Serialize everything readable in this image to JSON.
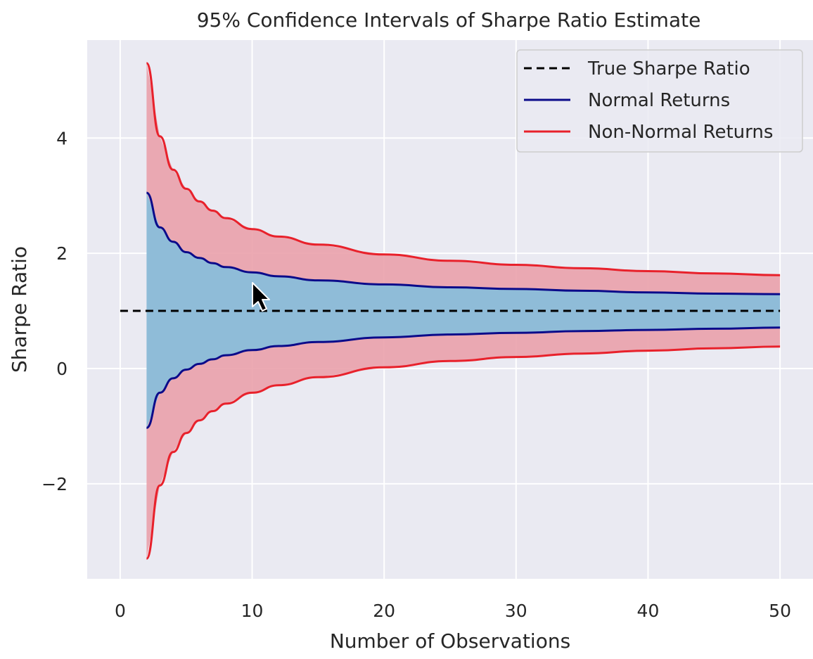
{
  "chart_data": {
    "type": "line",
    "title": "95% Confidence Intervals of Sharpe Ratio Estimate",
    "xlabel": "Number of Observations",
    "ylabel": "Sharpe Ratio",
    "xlim": [
      -2.5,
      52.5
    ],
    "ylim": [
      -3.65,
      5.7
    ],
    "x_ticks": [
      0,
      10,
      20,
      30,
      40,
      50
    ],
    "y_ticks": [
      -2,
      0,
      2,
      4
    ],
    "x_tick_labels": [
      "0",
      "10",
      "20",
      "30",
      "40",
      "50"
    ],
    "y_tick_labels": [
      "−2",
      "0",
      "2",
      "4"
    ],
    "grid": true,
    "legend_position": "top-right",
    "true_sharpe": 1.0,
    "true_sharpe_x_range": [
      0,
      50
    ],
    "series": [
      {
        "name": "True Sharpe Ratio",
        "style": "dashed",
        "color": "#000000",
        "x": [
          0,
          50
        ],
        "y": [
          1.0,
          1.0
        ]
      },
      {
        "name": "Normal Returns",
        "style": "solid",
        "color": "#0b0b8a",
        "fill": "#8fbcd8",
        "x": [
          2,
          3,
          4,
          5,
          6,
          7,
          8,
          10,
          12,
          15,
          20,
          25,
          30,
          35,
          40,
          45,
          50
        ],
        "upper": [
          3.05,
          2.45,
          2.2,
          2.02,
          1.92,
          1.83,
          1.76,
          1.67,
          1.6,
          1.53,
          1.46,
          1.41,
          1.38,
          1.35,
          1.32,
          1.3,
          1.29
        ],
        "lower": [
          -1.03,
          -0.42,
          -0.17,
          -0.02,
          0.08,
          0.16,
          0.23,
          0.32,
          0.39,
          0.46,
          0.54,
          0.59,
          0.62,
          0.65,
          0.67,
          0.69,
          0.71
        ]
      },
      {
        "name": "Non-Normal Returns",
        "style": "solid",
        "color": "#e8212b",
        "fill": "#eaa1ab",
        "x": [
          2,
          3,
          4,
          5,
          6,
          7,
          8,
          10,
          12,
          15,
          20,
          25,
          30,
          35,
          40,
          45,
          50
        ],
        "upper": [
          5.3,
          4.03,
          3.45,
          3.12,
          2.9,
          2.74,
          2.61,
          2.42,
          2.29,
          2.15,
          1.98,
          1.87,
          1.8,
          1.74,
          1.69,
          1.65,
          1.62
        ],
        "lower": [
          -3.3,
          -2.03,
          -1.45,
          -1.12,
          -0.9,
          -0.74,
          -0.61,
          -0.42,
          -0.29,
          -0.15,
          0.02,
          0.13,
          0.2,
          0.26,
          0.31,
          0.35,
          0.38
        ]
      }
    ]
  },
  "colors": {
    "plot_background": "#eaeaf2",
    "grid": "#ffffff",
    "text": "#262626",
    "legend_frame": "#cccccc"
  },
  "legend": {
    "items": [
      {
        "label": "True Sharpe Ratio",
        "style": "dashed",
        "color": "#000000"
      },
      {
        "label": "Normal Returns",
        "style": "solid",
        "color": "#0b0b8a"
      },
      {
        "label": "Non-Normal Returns",
        "style": "solid",
        "color": "#e8212b"
      }
    ]
  },
  "cursor": {
    "icon": "mouse-pointer-icon"
  }
}
